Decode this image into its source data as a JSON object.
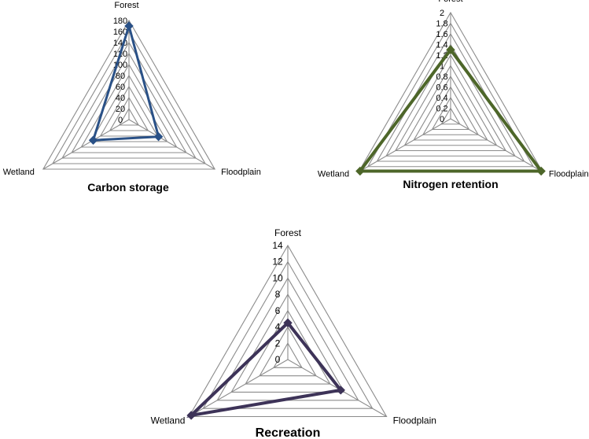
{
  "chart_data": [
    {
      "type": "radar",
      "title": "Carbon storage",
      "axes": [
        "Forest",
        "Floodplain",
        "Wetland"
      ],
      "rlim": [
        0,
        180
      ],
      "ticks": [
        "0",
        "20",
        "40",
        "60",
        "80",
        "100",
        "120",
        "140",
        "160",
        "180"
      ],
      "series": [
        {
          "values": [
            170,
            62,
            75
          ],
          "color": "#2a5187",
          "marker": "diamond"
        }
      ],
      "grid": true
    },
    {
      "type": "radar",
      "title": "Nitrogen retention",
      "axes": [
        "Forest",
        "Floodplain",
        "Wetland"
      ],
      "rlim": [
        0,
        2
      ],
      "ticks": [
        "0",
        "0.2",
        "0.4",
        "0.6",
        "0.8",
        "1",
        "1.2",
        "1.4",
        "1.6",
        "1.8",
        "2"
      ],
      "series": [
        {
          "values": [
            1.3,
            1.97,
            1.97
          ],
          "color": "#4d6629",
          "marker": "diamond"
        }
      ],
      "grid": true
    },
    {
      "type": "radar",
      "title": "Recreation",
      "axes": [
        "Forest",
        "Floodplain",
        "Wetland"
      ],
      "rlim": [
        0,
        14
      ],
      "ticks": [
        "0",
        "2",
        "4",
        "6",
        "8",
        "10",
        "12",
        "14"
      ],
      "series": [
        {
          "values": [
            4.5,
            7.5,
            13.7
          ],
          "color": "#3d3358",
          "marker": "diamond"
        }
      ],
      "grid": true
    }
  ]
}
